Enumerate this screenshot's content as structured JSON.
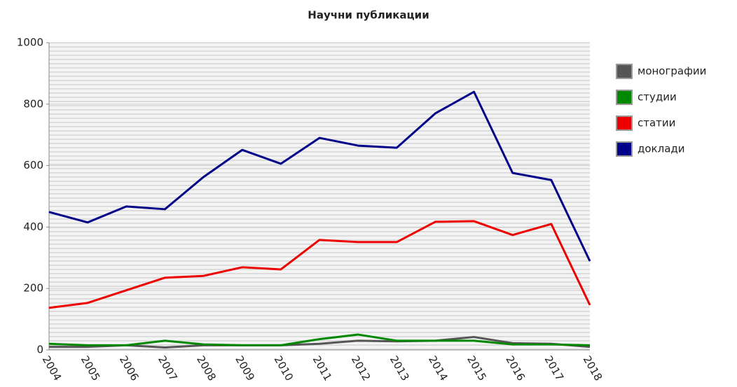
{
  "chart_data": {
    "type": "line",
    "title": "Научни публикации",
    "categories": [
      "2004",
      "2005",
      "2006",
      "2007",
      "2008",
      "2009",
      "2010",
      "2011",
      "2012",
      "2013",
      "2014",
      "2015",
      "2016",
      "2017",
      "2018"
    ],
    "series": [
      {
        "name": "монографии",
        "color": "#555555",
        "values": [
          10,
          10,
          15,
          8,
          15,
          15,
          15,
          20,
          30,
          28,
          30,
          42,
          22,
          20,
          10
        ]
      },
      {
        "name": "студии",
        "color": "#008800",
        "values": [
          20,
          15,
          15,
          30,
          18,
          15,
          15,
          35,
          50,
          30,
          30,
          30,
          18,
          18,
          15
        ]
      },
      {
        "name": "статии",
        "color": "#ee0000",
        "values": [
          137,
          153,
          194,
          235,
          241,
          269,
          262,
          358,
          351,
          351,
          417,
          419,
          374,
          410,
          146
        ]
      },
      {
        "name": "доклади",
        "color": "#000088",
        "values": [
          449,
          415,
          467,
          458,
          563,
          651,
          606,
          690,
          665,
          658,
          770,
          840,
          576,
          553,
          289
        ]
      }
    ],
    "ylim": [
      0,
      1000
    ],
    "yticks": [
      0,
      200,
      400,
      600,
      800,
      1000
    ],
    "grid": true,
    "legend": "right"
  }
}
